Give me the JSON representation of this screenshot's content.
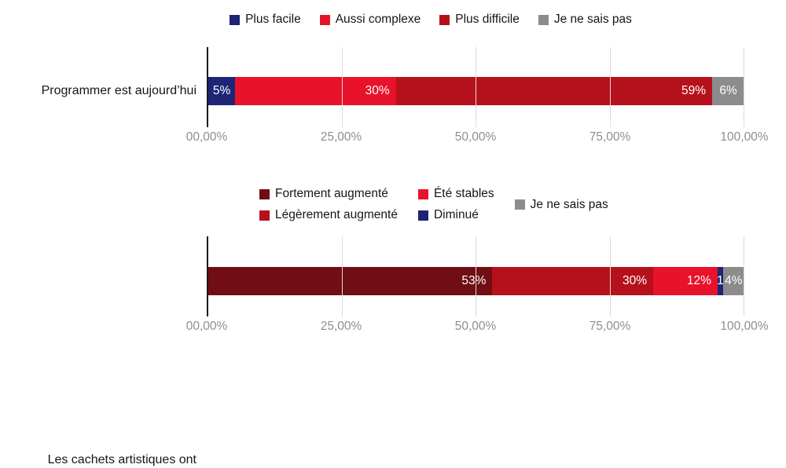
{
  "colors": {
    "gridline": "#DBDBDB",
    "axis_line": "#1A1A1A",
    "tick_text": "#8E8E8E",
    "label_text": "#161616",
    "bar_label_text": "#FFFFFF",
    "navy": "#1E2574",
    "bright_red": "#E8122B",
    "dark_red": "#B5111C",
    "maroon": "#700E13",
    "gray": "#8C8C8C"
  },
  "chart_data": [
    {
      "type": "bar",
      "stacked": true,
      "orientation": "horizontal",
      "title": "",
      "category": "Programmer est aujourd’hui",
      "series": [
        {
          "name": "Plus facile",
          "value": 5,
          "label": "5%",
          "color": "#1E2574"
        },
        {
          "name": "Aussi complexe",
          "value": 30,
          "label": "30%",
          "color": "#E8122B"
        },
        {
          "name": "Plus difficile",
          "value": 59,
          "label": "59%",
          "color": "#B5111C"
        },
        {
          "name": "Je ne sais pas",
          "value": 6,
          "label": "6%",
          "color": "#8C8C8C",
          "pattern": "dots"
        }
      ],
      "x_ticks": [
        "00,00%",
        "25,00%",
        "50,00%",
        "75,00%",
        "100,00%"
      ],
      "xlim": [
        0,
        100
      ],
      "gridlines": true,
      "legend_position": "top-center",
      "legend_layout": "row"
    },
    {
      "type": "bar",
      "stacked": true,
      "orientation": "horizontal",
      "title": "",
      "category": "Les cachets artistiques ont",
      "series": [
        {
          "name": "Fortement augmenté",
          "value": 53,
          "label": "53%",
          "color": "#700E13"
        },
        {
          "name": "Légèrement augmenté",
          "value": 30,
          "label": "30%",
          "color": "#B5111C"
        },
        {
          "name": "Été stables",
          "value": 12,
          "label": "12%",
          "color": "#E8122B"
        },
        {
          "name": "Diminué",
          "value": 1,
          "label": "1",
          "color": "#1E2574"
        },
        {
          "name": "Je ne sais pas",
          "value": 4,
          "label": "4%",
          "color": "#8C8C8C",
          "pattern": "dots"
        }
      ],
      "x_ticks": [
        "00,00%",
        "25,00%",
        "50,00%",
        "75,00%",
        "100,00%"
      ],
      "xlim": [
        0,
        100
      ],
      "gridlines": true,
      "legend_position": "top-left",
      "legend_layout": "columns",
      "legend_columns": [
        [
          0,
          1
        ],
        [
          2,
          3
        ],
        [
          4
        ]
      ]
    }
  ]
}
